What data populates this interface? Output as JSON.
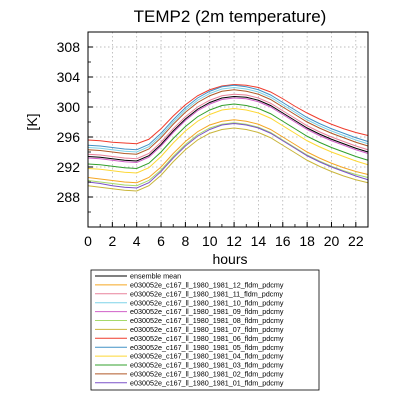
{
  "chart_data": {
    "type": "line",
    "title": "TEMP2 (2m temperature)",
    "xlabel": "hours",
    "ylabel": "[K]",
    "xlim": [
      0,
      23
    ],
    "ylim": [
      284,
      310
    ],
    "xticks": [
      "0",
      "2",
      "4",
      "6",
      "8",
      "10",
      "12",
      "14",
      "16",
      "18",
      "20",
      "22"
    ],
    "yticks": [
      "288",
      "292",
      "296",
      "300",
      "304",
      "308"
    ],
    "grid": true,
    "legend_position": "bottom",
    "x": [
      0,
      1,
      2,
      3,
      4,
      5,
      6,
      7,
      8,
      9,
      10,
      11,
      12,
      13,
      14,
      15,
      16,
      17,
      18,
      19,
      20,
      21,
      22,
      23
    ],
    "series": [
      {
        "name": "ensemble mean",
        "color": "#000000",
        "values": [
          293.4,
          293.3,
          293.1,
          292.9,
          292.8,
          293.5,
          295.0,
          296.8,
          298.4,
          299.7,
          300.6,
          301.2,
          301.4,
          301.3,
          300.9,
          300.2,
          299.2,
          298.2,
          297.2,
          296.4,
          295.7,
          295.1,
          294.5,
          294.0
        ]
      },
      {
        "name": "e030052e_c167_ll_1980_1981_12_fldm_pdcmy",
        "color": "#f5a623",
        "values": [
          290.6,
          290.4,
          290.2,
          290.0,
          289.9,
          290.6,
          292.0,
          293.8,
          295.4,
          296.7,
          297.6,
          298.1,
          298.3,
          298.1,
          297.7,
          297.0,
          296.0,
          295.0,
          294.0,
          293.2,
          292.5,
          291.9,
          291.4,
          291.0
        ]
      },
      {
        "name": "e030052e_c167_ll_1980_1981_11_fldm_pdcmy",
        "color": "#e8829b",
        "values": [
          293.7,
          293.6,
          293.4,
          293.2,
          293.1,
          293.8,
          295.3,
          297.1,
          298.7,
          300.0,
          300.9,
          301.5,
          301.7,
          301.6,
          301.2,
          300.5,
          299.5,
          298.5,
          297.5,
          296.7,
          296.0,
          295.4,
          294.8,
          294.3
        ]
      },
      {
        "name": "e030052e_c167_ll_1980_1981_10_fldm_pdcmy",
        "color": "#7fd3e8",
        "values": [
          294.6,
          294.5,
          294.3,
          294.1,
          294.0,
          294.7,
          296.2,
          298.0,
          299.6,
          300.9,
          301.8,
          302.4,
          302.6,
          302.4,
          302.0,
          301.3,
          300.3,
          299.3,
          298.3,
          297.5,
          296.8,
          296.2,
          295.6,
          295.1
        ]
      },
      {
        "name": "e030052e_c167_ll_1980_1981_09_fldm_pdcmy",
        "color": "#d060c8",
        "values": [
          293.2,
          293.1,
          292.9,
          292.7,
          292.6,
          293.3,
          294.8,
          296.6,
          298.2,
          299.5,
          300.4,
          301.0,
          301.2,
          301.1,
          300.7,
          300.0,
          299.0,
          298.0,
          297.0,
          296.2,
          295.5,
          294.9,
          294.3,
          293.8
        ]
      },
      {
        "name": "e030052e_c167_ll_1980_1981_08_fldm_pdcmy",
        "color": "#a6d96a",
        "values": [
          290.2,
          290.0,
          289.8,
          289.6,
          289.5,
          290.2,
          291.6,
          293.4,
          295.0,
          296.3,
          297.2,
          297.7,
          297.9,
          297.7,
          297.3,
          296.6,
          295.6,
          294.6,
          293.6,
          292.8,
          292.1,
          291.5,
          291.0,
          290.6
        ]
      },
      {
        "name": "e030052e_c167_ll_1980_1981_07_fldm_pdcmy",
        "color": "#c9b53a",
        "values": [
          289.5,
          289.3,
          289.1,
          288.9,
          288.8,
          289.5,
          290.9,
          292.7,
          294.3,
          295.6,
          296.5,
          297.0,
          297.2,
          297.0,
          296.6,
          295.9,
          294.9,
          293.9,
          292.9,
          292.1,
          291.4,
          290.8,
          290.3,
          289.9
        ]
      },
      {
        "name": "e030052e_c167_ll_1980_1981_06_fldm_pdcmy",
        "color": "#ef3b2c",
        "values": [
          295.6,
          295.5,
          295.3,
          295.2,
          295.1,
          295.7,
          297.1,
          298.8,
          300.3,
          301.5,
          302.3,
          302.8,
          303.0,
          302.9,
          302.6,
          302.0,
          301.1,
          300.1,
          299.2,
          298.4,
          297.7,
          297.1,
          296.6,
          296.2
        ]
      },
      {
        "name": "e030052e_c167_ll_1980_1981_05_fldm_pdcmy",
        "color": "#4292c6",
        "values": [
          294.9,
          294.8,
          294.6,
          294.4,
          294.3,
          295.0,
          296.5,
          298.3,
          299.9,
          301.2,
          302.1,
          302.7,
          302.9,
          302.7,
          302.3,
          301.6,
          300.6,
          299.6,
          298.6,
          297.8,
          297.1,
          296.5,
          295.9,
          295.4
        ]
      },
      {
        "name": "e030052e_c167_ll_1980_1981_04_fldm_pdcmy",
        "color": "#fdd835",
        "values": [
          291.8,
          291.7,
          291.5,
          291.3,
          291.2,
          291.9,
          293.4,
          295.2,
          296.8,
          298.1,
          299.0,
          299.6,
          299.8,
          299.6,
          299.2,
          298.5,
          297.5,
          296.5,
          295.5,
          294.7,
          294.0,
          293.4,
          292.8,
          292.3
        ]
      },
      {
        "name": "e030052e_c167_ll_1980_1981_03_fldm_pdcmy",
        "color": "#33a02c",
        "values": [
          292.4,
          292.3,
          292.1,
          291.9,
          291.8,
          292.5,
          294.0,
          295.8,
          297.4,
          298.7,
          299.6,
          300.2,
          300.4,
          300.2,
          299.8,
          299.1,
          298.1,
          297.1,
          296.1,
          295.3,
          294.6,
          294.0,
          293.4,
          292.9
        ]
      },
      {
        "name": "e030052e_c167_ll_1980_1981_02_fldm_pdcmy",
        "color": "#b15928",
        "values": [
          294.3,
          294.2,
          294.0,
          293.8,
          293.7,
          294.4,
          295.9,
          297.7,
          299.3,
          300.6,
          301.5,
          302.1,
          302.3,
          302.1,
          301.7,
          301.0,
          300.0,
          299.0,
          298.0,
          297.2,
          296.5,
          295.9,
          295.3,
          294.8
        ]
      },
      {
        "name": "e030052e_c167_ll_1980_1981_01_fldm_pdcmy",
        "color": "#7b52c9",
        "values": [
          290.0,
          289.8,
          289.5,
          289.3,
          289.2,
          289.9,
          291.4,
          293.2,
          294.8,
          296.1,
          297.0,
          297.6,
          297.8,
          297.6,
          297.2,
          296.5,
          295.5,
          294.5,
          293.5,
          292.7,
          292.0,
          291.4,
          290.8,
          290.3
        ]
      }
    ]
  }
}
